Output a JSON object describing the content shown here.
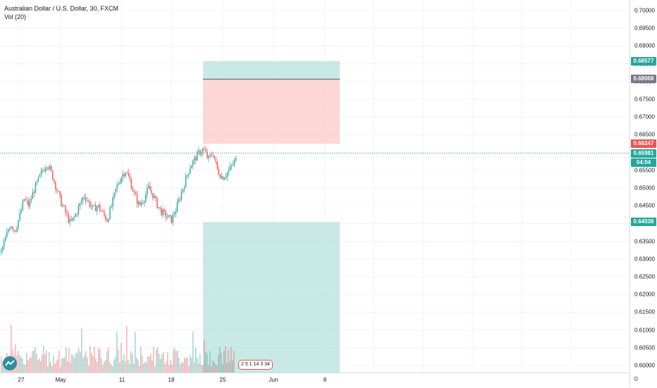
{
  "header": {
    "symbol_line": "Australian Dollar / U.S. Dollar, 30, FXCM",
    "volume_line": "Vol (20)"
  },
  "price_axis": {
    "ticks": [
      "0.70000",
      "0.69500",
      "0.69000",
      "0.68500",
      "0.68000",
      "0.67500",
      "0.67000",
      "0.66500",
      "0.66000",
      "0.65500",
      "0.65000",
      "0.64500",
      "0.64000",
      "0.63500",
      "0.63000",
      "0.62500",
      "0.62000",
      "0.61500",
      "0.61000",
      "0.60500",
      "0.60000"
    ],
    "tick_values": [
      0.7,
      0.695,
      0.69,
      0.685,
      0.68,
      0.675,
      0.67,
      0.665,
      0.66,
      0.655,
      0.65,
      0.645,
      0.64,
      0.635,
      0.63,
      0.625,
      0.62,
      0.615,
      0.61,
      0.605,
      0.6
    ],
    "labels": {
      "target": "0.68577",
      "entry": "0.68068",
      "stop": "0.66247",
      "last": "0.65981",
      "countdown": "04:04",
      "lower_target": "0.64038"
    }
  },
  "time_axis": {
    "ticks": [
      "27",
      "May",
      "11",
      "18",
      "25",
      "Jun",
      "8"
    ]
  },
  "mini_legend": "2 5 1 14 3 34",
  "colors": {
    "bull": "#26a69a",
    "bear": "#ef5350",
    "target_zone": "#b2dfdb",
    "stop_zone": "#fcc8c8",
    "entry_label": "#787b86",
    "grid": "#f0f3fa"
  },
  "chart_data": {
    "type": "candlestick",
    "symbol": "Australian Dollar / U.S. Dollar",
    "interval": "30",
    "source": "FXCM",
    "last_price": 0.65981,
    "positions": [
      {
        "kind": "short",
        "entry": 0.68068,
        "target": 0.68577,
        "stop": 0.66247
      },
      {
        "kind": "long",
        "entry": 0.64038,
        "target": 0.6
      }
    ],
    "price_path": [
      0.632,
      0.636,
      0.64,
      0.638,
      0.642,
      0.647,
      0.645,
      0.649,
      0.652,
      0.655,
      0.657,
      0.654,
      0.65,
      0.646,
      0.643,
      0.64,
      0.642,
      0.645,
      0.648,
      0.646,
      0.644,
      0.645,
      0.643,
      0.641,
      0.645,
      0.65,
      0.653,
      0.655,
      0.652,
      0.648,
      0.645,
      0.647,
      0.65,
      0.648,
      0.645,
      0.643,
      0.642,
      0.641,
      0.644,
      0.648,
      0.652,
      0.656,
      0.658,
      0.66,
      0.661,
      0.658,
      0.66,
      0.655,
      0.653,
      0.654,
      0.656,
      0.658
    ]
  }
}
